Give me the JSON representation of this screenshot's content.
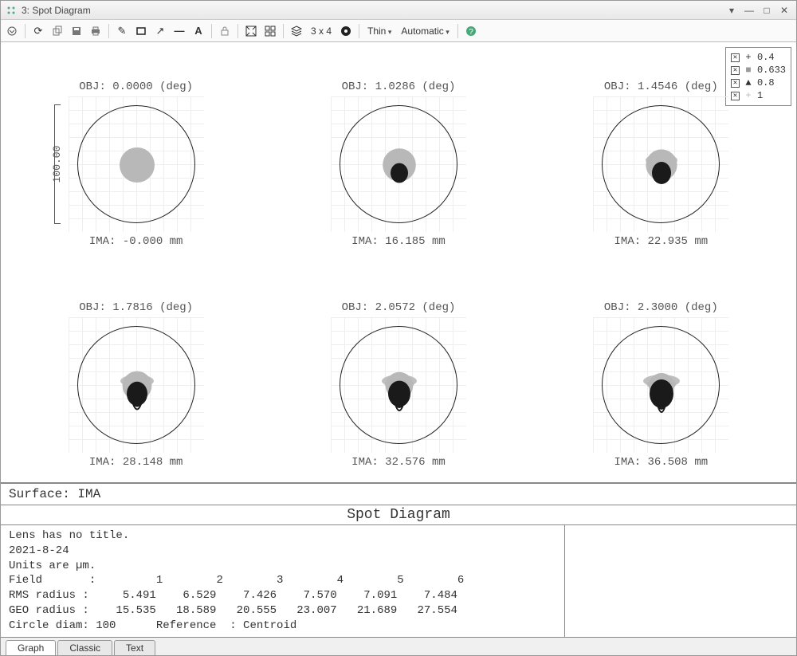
{
  "window": {
    "title": "3: Spot Diagram"
  },
  "toolbar": {
    "grid_label": "3 x 4",
    "thin_label": "Thin",
    "auto_label": "Automatic"
  },
  "legend": {
    "items": [
      {
        "symbol": "+",
        "label": "0.4",
        "color": "#444"
      },
      {
        "symbol": "■",
        "label": "0.633",
        "color": "#999"
      },
      {
        "symbol": "▲",
        "label": "0.8",
        "color": "#444"
      },
      {
        "symbol": "+",
        "label": "1",
        "color": "#bbb"
      }
    ]
  },
  "scale": {
    "label": "100.00"
  },
  "spots": [
    {
      "obj": "OBJ: 0.0000 (deg)",
      "ima": "IMA: -0.000 mm",
      "idx": 0
    },
    {
      "obj": "OBJ: 1.0286 (deg)",
      "ima": "IMA: 16.185 mm",
      "idx": 1
    },
    {
      "obj": "OBJ: 1.4546 (deg)",
      "ima": "IMA: 22.935 mm",
      "idx": 2
    },
    {
      "obj": "OBJ: 1.7816 (deg)",
      "ima": "IMA: 28.148 mm",
      "idx": 3
    },
    {
      "obj": "OBJ: 2.0572 (deg)",
      "ima": "IMA: 32.576 mm",
      "idx": 4
    },
    {
      "obj": "OBJ: 2.3000 (deg)",
      "ima": "IMA: 36.508 mm",
      "idx": 5
    }
  ],
  "info": {
    "surface": "Surface: IMA",
    "title": "Spot Diagram",
    "lines": [
      "Lens has no title.",
      "2021-8-24",
      "Units are µm.",
      "Field       :         1        2        3        4        5        6",
      "RMS radius :     5.491    6.529    7.426    7.570    7.091    7.484",
      "GEO radius :    15.535   18.589   20.555   23.007   21.689   27.554",
      "Circle diam: 100      Reference  : Centroid"
    ]
  },
  "tabs": {
    "items": [
      "Graph",
      "Classic",
      "Text"
    ],
    "active": 0
  },
  "colors": {
    "spot_light": "#b8b8b8",
    "spot_dark": "#1a1a1a",
    "circle": "#222",
    "grid": "#eee"
  }
}
